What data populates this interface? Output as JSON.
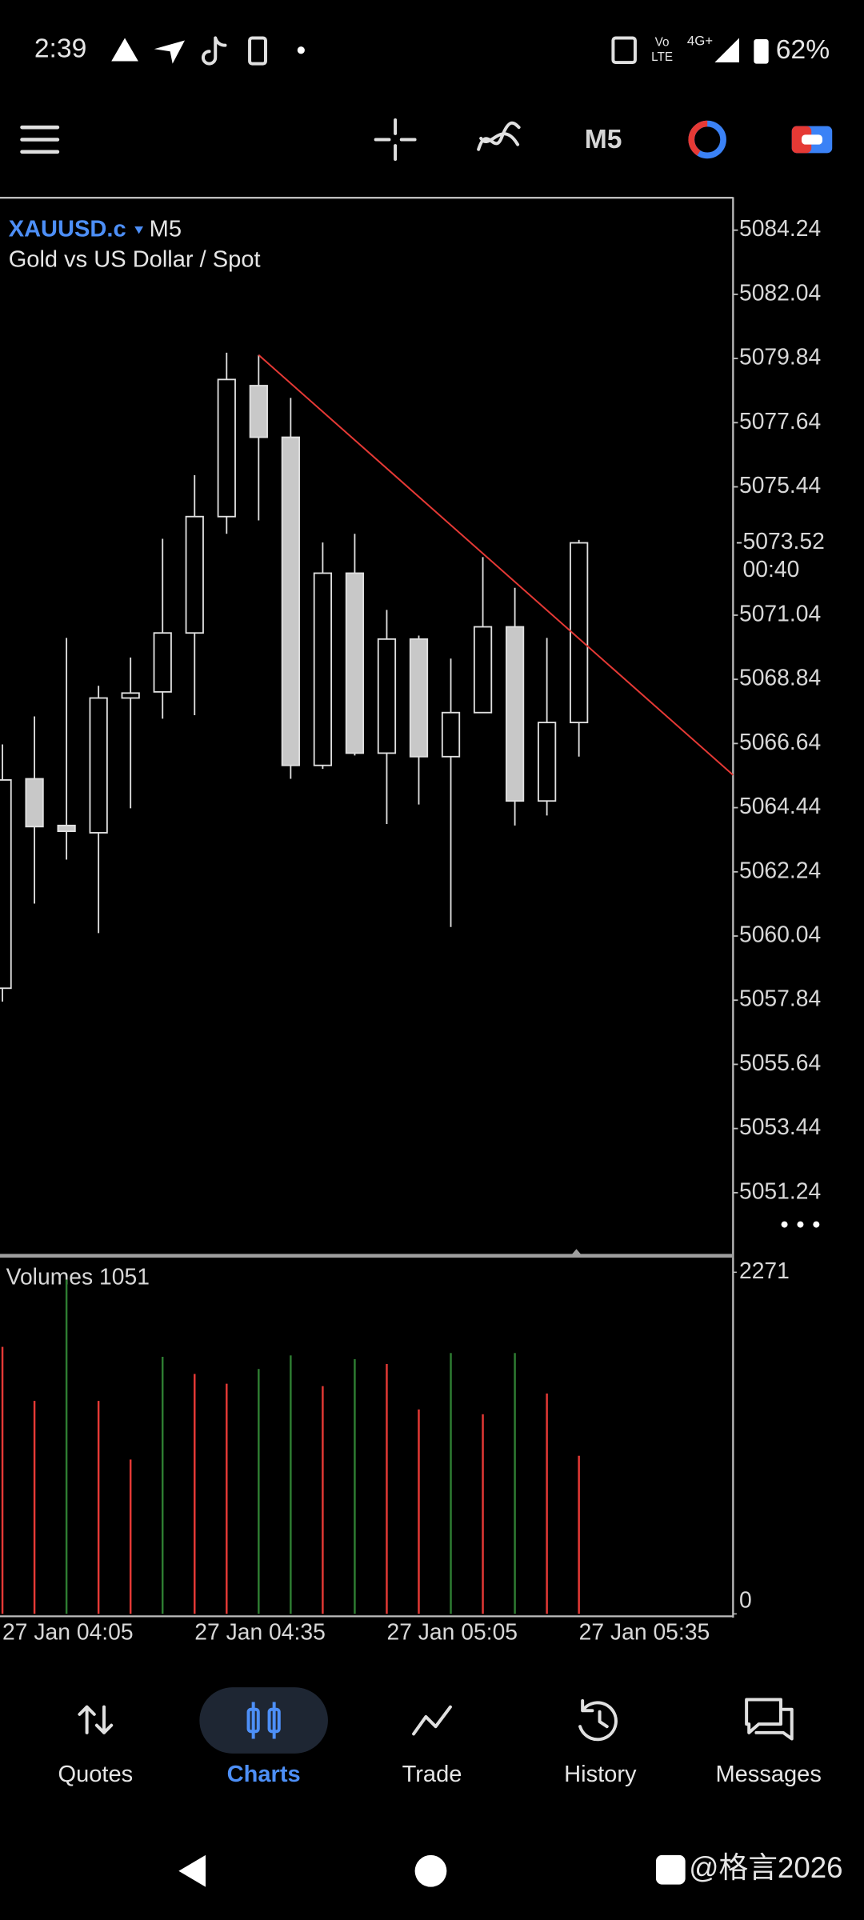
{
  "status_bar": {
    "time": "2:39",
    "volte": [
      "Vo",
      "LTE"
    ],
    "network": "4G+",
    "battery": "62%"
  },
  "toolbar": {
    "timeframe": "M5"
  },
  "chart_header": {
    "symbol": "XAUUSD.c",
    "timeframe": "M5",
    "description": "Gold vs US Dollar / Spot"
  },
  "chart_data": [
    {
      "type": "candlestick",
      "categories": [
        "27 Jan 04:05",
        null,
        null,
        null,
        null,
        null,
        "27 Jan 04:35",
        null,
        null,
        null,
        null,
        null,
        "27 Jan 05:05",
        null,
        null,
        null,
        null,
        null,
        "27 Jan 05:35"
      ],
      "open": [
        5058.25,
        5065.43,
        5063.83,
        5063.58,
        5068.2,
        5068.41,
        5070.43,
        5074.42,
        5078.91,
        5077.14,
        5065.89,
        5072.48,
        5066.31,
        5070.22,
        5066.19,
        5067.7,
        5070.64,
        5064.67,
        5067.36
      ],
      "high": [
        5066.61,
        5067.57,
        5070.26,
        5068.62,
        5069.59,
        5073.66,
        5075.84,
        5080.04,
        5079.96,
        5078.49,
        5073.53,
        5073.83,
        5071.22,
        5070.34,
        5069.55,
        5073.03,
        5071.98,
        5070.26,
        5073.62
      ],
      "low": [
        5057.79,
        5061.15,
        5062.66,
        5060.14,
        5064.42,
        5067.49,
        5067.61,
        5073.83,
        5074.29,
        5065.43,
        5065.77,
        5066.23,
        5063.88,
        5064.55,
        5060.35,
        5067.7,
        5063.83,
        5064.17,
        5066.19
      ],
      "close": [
        5065.39,
        5063.79,
        5063.63,
        5068.2,
        5068.37,
        5070.43,
        5074.42,
        5079.12,
        5077.14,
        5065.89,
        5072.48,
        5066.31,
        5070.22,
        5066.19,
        5067.7,
        5070.64,
        5064.67,
        5067.36,
        5073.52
      ],
      "colors": {
        "up": "#000000",
        "down": "#c8c8c8",
        "edge": "#e0e0e0"
      },
      "ylim": [
        5049.1,
        5085.33
      ],
      "yticks": [
        5084.24,
        5082.04,
        5079.84,
        5077.64,
        5075.44,
        5071.04,
        5068.84,
        5066.64,
        5064.44,
        5062.24,
        5060.04,
        5057.84,
        5055.64,
        5053.44,
        5051.24
      ],
      "current_price": 5073.52,
      "countdown": "00:40",
      "trendline": {
        "color": "#e53935",
        "values": [
          5079.96,
          5065.56
        ]
      },
      "grid": false
    },
    {
      "type": "bar",
      "title": "Volumes 1051",
      "values": [
        1775,
        1416,
        2222,
        1416,
        1026,
        1709,
        1595,
        1530,
        1628,
        1718,
        1514,
        1693,
        1661,
        1359,
        1734,
        1327,
        1734,
        1465,
        1051
      ],
      "colors": [
        "#e53935",
        "#e53935",
        "#2e7d32",
        "#e53935",
        "#e53935",
        "#2e7d32",
        "#e53935",
        "#e53935",
        "#2e7d32",
        "#2e7d32",
        "#e53935",
        "#2e7d32",
        "#e53935",
        "#e53935",
        "#2e7d32",
        "#e53935",
        "#2e7d32",
        "#e53935",
        "#e53935"
      ],
      "ylim": [
        0,
        2271
      ],
      "yticks": [
        0,
        2271
      ]
    }
  ],
  "nav": {
    "items": [
      "Quotes",
      "Charts",
      "Trade",
      "History",
      "Messages"
    ],
    "active": 1
  },
  "watermark": "@格言2026"
}
